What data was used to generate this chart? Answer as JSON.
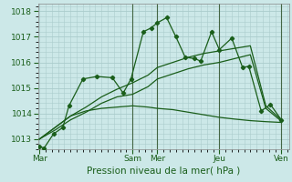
{
  "xlabel": "Pression niveau de la mer( hPa )",
  "bg_color": "#cce8e8",
  "grid_color": "#aacccc",
  "line_color": "#1a5e1a",
  "vline_color": "#446644",
  "ylim": [
    1012.6,
    1018.3
  ],
  "yticks": [
    1013,
    1014,
    1015,
    1016,
    1017,
    1018
  ],
  "day_labels": [
    "Mar",
    "Sam",
    "Mer",
    "Jeu",
    "Ven"
  ],
  "day_positions": [
    0.0,
    3.0,
    3.8,
    5.8,
    7.8
  ],
  "vline_positions": [
    3.0,
    3.8,
    5.8,
    7.8
  ],
  "series1_x": [
    0.0,
    0.15,
    0.45,
    0.75,
    0.95,
    1.4,
    1.85,
    2.35,
    2.7,
    2.95,
    3.35,
    3.6,
    3.8,
    4.1,
    4.4,
    4.7,
    5.0,
    5.2,
    5.55,
    5.8,
    6.2,
    6.55,
    6.75,
    7.15,
    7.45,
    7.8
  ],
  "series1_y": [
    1012.7,
    1012.65,
    1013.2,
    1013.45,
    1014.3,
    1015.35,
    1015.45,
    1015.4,
    1014.8,
    1015.35,
    1017.2,
    1017.35,
    1017.55,
    1017.75,
    1017.0,
    1016.2,
    1016.15,
    1016.05,
    1017.2,
    1016.5,
    1016.95,
    1015.8,
    1015.85,
    1014.1,
    1014.35,
    1013.75
  ],
  "series2_x": [
    0.0,
    0.5,
    1.0,
    1.5,
    2.0,
    2.5,
    3.0,
    3.5,
    3.8,
    4.3,
    4.8,
    5.3,
    5.8,
    6.3,
    6.8,
    7.3,
    7.8
  ],
  "series2_y": [
    1013.0,
    1013.45,
    1013.9,
    1014.1,
    1014.2,
    1014.25,
    1014.3,
    1014.25,
    1014.2,
    1014.15,
    1014.05,
    1013.95,
    1013.85,
    1013.78,
    1013.72,
    1013.68,
    1013.65
  ],
  "series3_x": [
    0.0,
    0.5,
    1.0,
    1.5,
    2.0,
    2.5,
    3.0,
    3.5,
    3.8,
    4.3,
    4.8,
    5.3,
    5.8,
    6.3,
    6.8,
    7.3,
    7.8
  ],
  "series3_y": [
    1013.0,
    1013.35,
    1013.75,
    1014.05,
    1014.4,
    1014.65,
    1014.75,
    1015.05,
    1015.35,
    1015.55,
    1015.75,
    1015.9,
    1016.0,
    1016.15,
    1016.3,
    1014.2,
    1013.7
  ],
  "series4_x": [
    0.0,
    0.5,
    1.0,
    1.5,
    2.0,
    2.5,
    3.0,
    3.5,
    3.8,
    4.3,
    4.8,
    5.3,
    5.8,
    6.3,
    6.8,
    7.3,
    7.8
  ],
  "series4_y": [
    1013.0,
    1013.45,
    1013.9,
    1014.25,
    1014.65,
    1014.95,
    1015.2,
    1015.5,
    1015.8,
    1016.0,
    1016.2,
    1016.35,
    1016.45,
    1016.55,
    1016.65,
    1014.3,
    1013.75
  ],
  "xlabel_fontsize": 7.5,
  "tick_fontsize": 6.5
}
